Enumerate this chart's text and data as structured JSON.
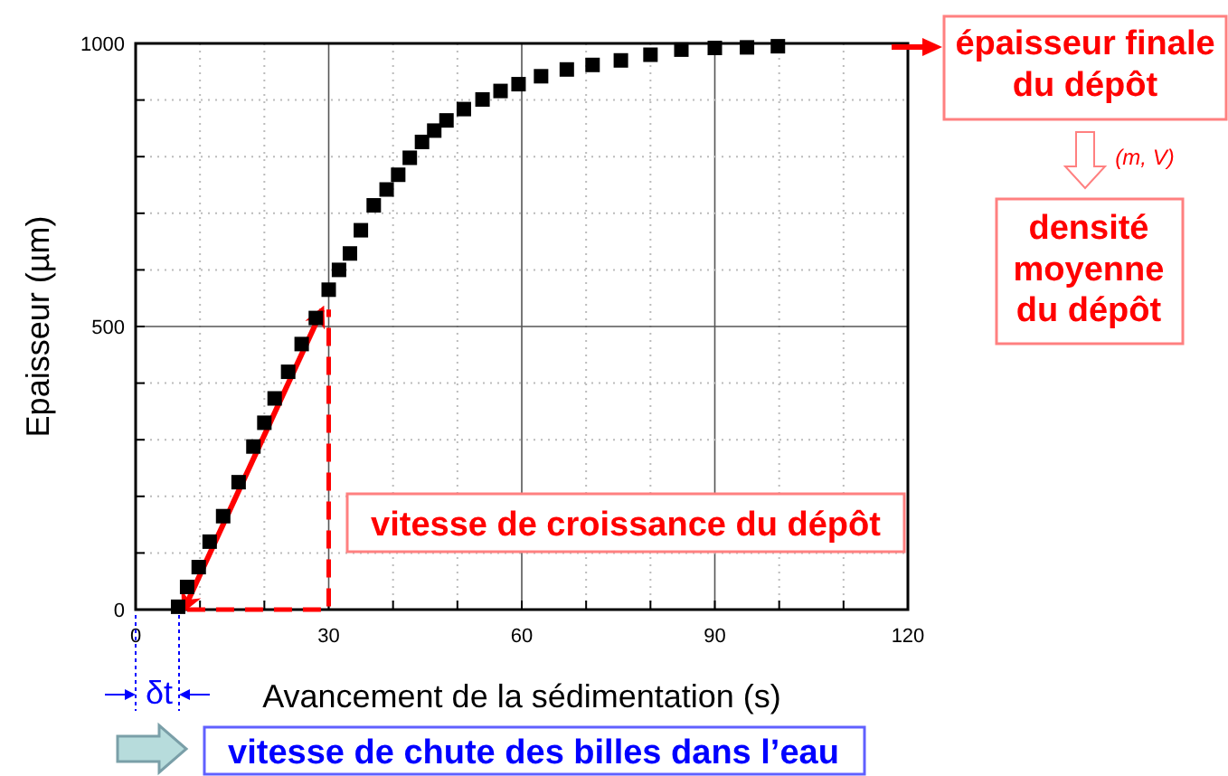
{
  "chart_data": {
    "type": "scatter",
    "xlabel": "Avancement de la sédimentation (s)",
    "ylabel": "Epaisseur (µm)",
    "xlim": [
      0,
      120
    ],
    "ylim": [
      0,
      1000
    ],
    "xticks": [
      0,
      {
        "value": 10,
        "label": null
      },
      {
        "value": 20,
        "label": null
      },
      30,
      {
        "value": 40,
        "label": null
      },
      {
        "value": 50,
        "label": null
      },
      60,
      {
        "value": 70,
        "label": null
      },
      {
        "value": 80,
        "label": null
      },
      90,
      {
        "value": 100,
        "label": null
      },
      {
        "value": 110,
        "label": null
      },
      120
    ],
    "yticks": [
      0,
      {
        "value": 100,
        "label": null
      },
      {
        "value": 200,
        "label": null
      },
      {
        "value": 300,
        "label": null
      },
      {
        "value": 400,
        "label": null
      },
      500,
      {
        "value": 600,
        "label": null
      },
      {
        "value": 700,
        "label": null
      },
      {
        "value": 800,
        "label": null
      },
      {
        "value": 900,
        "label": null
      },
      1000
    ],
    "grid": true,
    "series": [
      {
        "marker": "square",
        "color": "#000000",
        "x": [
          6.6,
          8,
          9.8,
          11.5,
          13.6,
          16,
          18.3,
          20,
          21.6,
          23.7,
          25.8,
          28,
          30,
          31.6,
          33.3,
          35,
          37,
          39,
          40.8,
          42.6,
          44.5,
          46.4,
          48.3,
          51,
          53.9,
          56.7,
          59.5,
          63,
          67,
          71,
          75.4,
          80,
          84.8,
          90,
          95,
          99.8
        ],
        "values": [
          5,
          40,
          75,
          120,
          165,
          225,
          288,
          330,
          373,
          420,
          469,
          515,
          565,
          600,
          629,
          670,
          714,
          742,
          768,
          798,
          826,
          846,
          864,
          884,
          901,
          916,
          928,
          942,
          954,
          962,
          970,
          980,
          989,
          992,
          993,
          995
        ]
      },
      {
        "type": "line",
        "color": "#ff0000",
        "line_style": "solid",
        "x": [
          7.5,
          29
        ],
        "values": [
          0,
          530
        ]
      },
      {
        "type": "line",
        "color": "#ff0000",
        "line_style": "dashed",
        "x": [
          8,
          30,
          30
        ],
        "values": [
          0,
          0,
          530
        ]
      }
    ],
    "annotations": [
      "vitesse de croissance du dépôt",
      "épaisseur finale du dépôt",
      "(m, V)",
      "densité moyenne du dépôt",
      "δt",
      "vitesse de chute des billes dans l’eau"
    ]
  }
}
